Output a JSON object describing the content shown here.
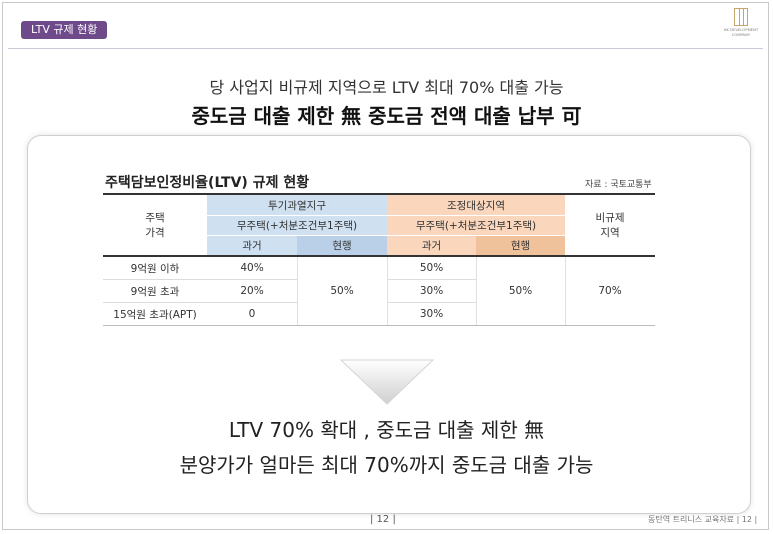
{
  "header": {
    "tag": "LTV 규제 현황",
    "logo_text": "HK DEVELOPMENT COMPANY",
    "headline1": "당 사업지 비규제 지역으로 LTV 최대 70% 대출 가능",
    "headline2": "중도금 대출 제한 無 중도금 전액 대출 납부 可"
  },
  "table": {
    "title": "주택담보인정비율(LTV) 규제 현황",
    "source": "자료 : 국토교통부",
    "row_header_label": "주택\n가격",
    "group1": {
      "name": "투기과열지구",
      "sub": "무주택(+처분조건부1주택)",
      "past": "과거",
      "now": "현행"
    },
    "group2": {
      "name": "조정대상지역",
      "sub": "무주택(+처분조건부1주택)",
      "past": "과거",
      "now": "현행"
    },
    "group3": {
      "name": "비규제\n지역"
    },
    "rows": [
      {
        "label": "9억원 이하",
        "g1_past": "40%",
        "g2_past": "50%"
      },
      {
        "label": "9억원 초과",
        "g1_past": "20%",
        "g2_past": "30%"
      },
      {
        "label": "15억원 초과(APT)",
        "g1_past": "0",
        "g2_past": "30%"
      }
    ],
    "g1_now": "50%",
    "g2_now": "50%",
    "g3_value": "70%"
  },
  "summary": {
    "line1": "LTV 70% 확대 , 중도금 대출 제한 無",
    "line2": "분양가가 얼마든 최대 70%까지 중도금 대출 가능"
  },
  "footer": {
    "page": "| 12 |",
    "right": "동탄역 트리니스 교육자료   | 12 |"
  },
  "colors": {
    "tag_bg": "#6e4a8b",
    "blue_header": "#cfe0f1",
    "orange_header": "#f9d6bc"
  }
}
